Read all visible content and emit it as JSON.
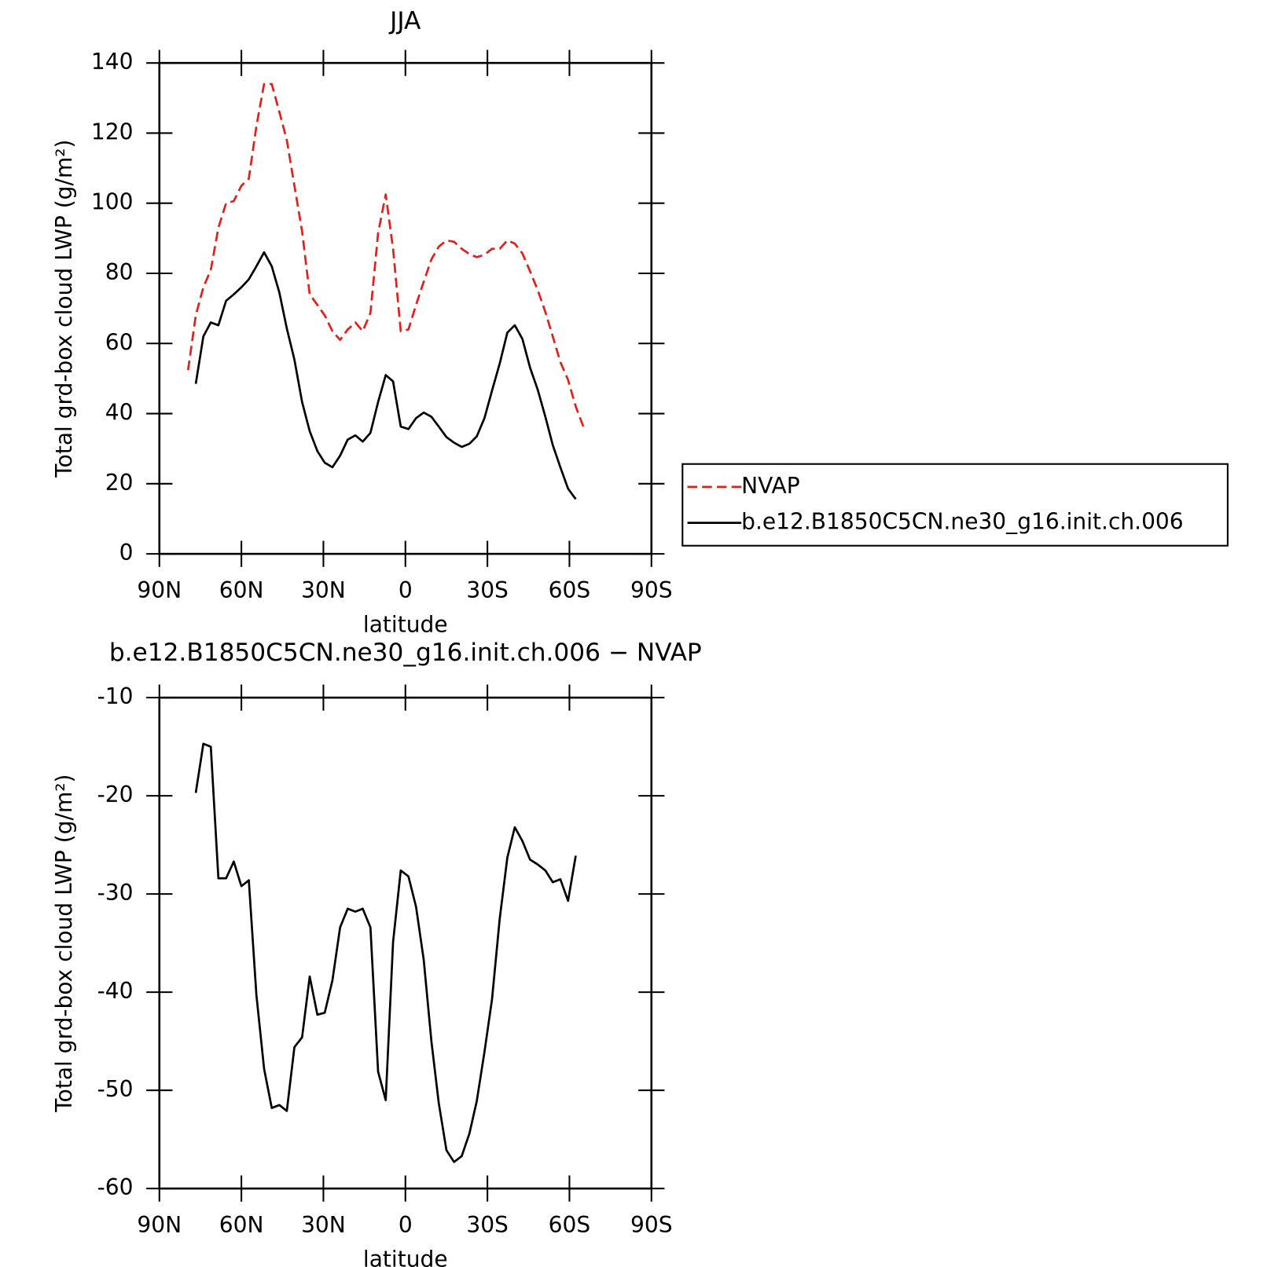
{
  "chart_data": [
    {
      "type": "line",
      "title": "JJA",
      "xlabel": "latitude",
      "ylabel": "Total grd-box cloud LWP (g/m²)",
      "x": [
        79.5,
        76.7,
        73.9,
        71.2,
        68.4,
        65.6,
        62.8,
        60.0,
        57.3,
        54.5,
        51.7,
        48.9,
        46.1,
        43.4,
        40.6,
        37.8,
        35.0,
        32.2,
        29.5,
        26.7,
        23.9,
        21.1,
        18.3,
        15.6,
        12.8,
        10.0,
        7.2,
        4.5,
        1.7,
        -1.1,
        -3.9,
        -6.7,
        -9.5,
        -12.2,
        -15.0,
        -17.8,
        -20.6,
        -23.4,
        -26.1,
        -28.9,
        -31.7,
        -34.5,
        -37.3,
        -40.0,
        -42.8,
        -45.6,
        -48.4,
        -51.2,
        -53.9,
        -56.7,
        -59.5,
        -62.3,
        -65.1
      ],
      "series": [
        {
          "name": "NVAP",
          "color": "#e0201b",
          "dash": true,
          "values": [
            52.4,
            68,
            76,
            81,
            93,
            100,
            100.6,
            105,
            107,
            122,
            134,
            134,
            126,
            118,
            105,
            92,
            74,
            71,
            68,
            63.5,
            61,
            64,
            66,
            63.5,
            68.7,
            91.5,
            102.5,
            87,
            63.5,
            64,
            71,
            77.6,
            84,
            87.6,
            89.4,
            89,
            87,
            85.5,
            84.6,
            85.3,
            87,
            87,
            89.4,
            88.5,
            85.7,
            80.6,
            75.2,
            69,
            62,
            54.7,
            49.6,
            42,
            36.3
          ]
        },
        {
          "name": "b.e12.B1850C5CN.ne30_g16.init.ch.006",
          "color": "#000000",
          "dash": false,
          "values": [
            null,
            48.5,
            62,
            66,
            65.2,
            72.2,
            74,
            76,
            78.3,
            82,
            86,
            82,
            74.5,
            64.3,
            55.4,
            43.3,
            35,
            29.3,
            26,
            24.7,
            28,
            32.6,
            33.8,
            32,
            34.5,
            43.3,
            51,
            49.2,
            36.3,
            35.6,
            38.7,
            40.3,
            39.1,
            36.3,
            33.3,
            31.7,
            30.5,
            31.4,
            33.5,
            38.7,
            46.6,
            54.3,
            63.1,
            65.2,
            61.3,
            53.1,
            46.8,
            39.1,
            31,
            24.7,
            18.6,
            15.6,
            null
          ]
        }
      ],
      "xlim": [
        90,
        -90
      ],
      "xticks": [
        {
          "value": 90,
          "label": "90N"
        },
        {
          "value": 60,
          "label": "60N"
        },
        {
          "value": 30,
          "label": "30N"
        },
        0,
        {
          "value": -30,
          "label": "30S"
        },
        {
          "value": -60,
          "label": "60S"
        },
        {
          "value": -90,
          "label": "90S"
        }
      ],
      "ylim": [
        0,
        140
      ],
      "yticks": [
        0,
        20,
        40,
        60,
        80,
        100,
        120,
        140
      ],
      "legend": "right"
    },
    {
      "type": "line",
      "title": "b.e12.B1850C5CN.ne30_g16.init.ch.006 − NVAP",
      "xlabel": "latitude",
      "ylabel": "Total grd-box cloud LWP (g/m²)",
      "x": [
        79.5,
        76.7,
        73.9,
        71.2,
        68.4,
        65.6,
        62.8,
        60.0,
        57.3,
        54.5,
        51.7,
        48.9,
        46.1,
        43.4,
        40.6,
        37.8,
        35.0,
        32.2,
        29.5,
        26.7,
        23.9,
        21.1,
        18.3,
        15.6,
        12.8,
        10.0,
        7.2,
        4.5,
        1.7,
        -1.1,
        -3.9,
        -6.7,
        -9.5,
        -12.2,
        -15.0,
        -17.8,
        -20.6,
        -23.4,
        -26.1,
        -28.9,
        -31.7,
        -34.5,
        -37.3,
        -40.0,
        -42.8,
        -45.6,
        -48.4,
        -51.2,
        -53.9,
        -56.7,
        -59.5,
        -62.3,
        -65.1
      ],
      "series": [
        {
          "color": "#000000",
          "dash": false,
          "values": [
            null,
            -19.7,
            -14.7,
            -15,
            -28.4,
            -28.4,
            -26.7,
            -29.2,
            -28.6,
            -40.3,
            -47.8,
            -51.8,
            -51.5,
            -52.1,
            -45.6,
            -44.6,
            -38.4,
            -42.3,
            -42.1,
            -38.8,
            -33.4,
            -31.5,
            -31.8,
            -31.5,
            -33.4,
            -48.1,
            -51,
            -34.9,
            -27.6,
            -28.2,
            -31.3,
            -36.7,
            -45,
            -51.3,
            -56.1,
            -57.3,
            -56.7,
            -54.4,
            -51.1,
            -46.1,
            -40.7,
            -32.5,
            -26.3,
            -23.2,
            -24.6,
            -26.5,
            -27,
            -27.6,
            -28.8,
            -28.5,
            -30.7,
            -26.1,
            null
          ]
        }
      ],
      "xlim": [
        90,
        -90
      ],
      "xticks": [
        {
          "value": 90,
          "label": "90N"
        },
        {
          "value": 60,
          "label": "60N"
        },
        {
          "value": 30,
          "label": "30N"
        },
        0,
        {
          "value": -30,
          "label": "30S"
        },
        {
          "value": -60,
          "label": "60S"
        },
        {
          "value": -90,
          "label": "90S"
        }
      ],
      "ylim": [
        -60,
        -10
      ],
      "yticks": [
        -60,
        -50,
        -40,
        -30,
        -20,
        -10
      ]
    }
  ]
}
